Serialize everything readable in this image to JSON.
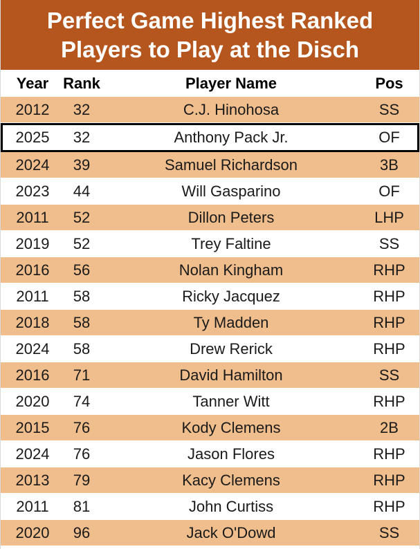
{
  "title": {
    "line1": "Perfect Game Highest Ranked",
    "line2": "Players to Play at the Disch"
  },
  "colors": {
    "banner": "#b5561f",
    "stripe": "#f0be8c",
    "highlight_border": "#000000"
  },
  "headers": {
    "year": "Year",
    "rank": "Rank",
    "name": "Player Name",
    "pos": "Pos"
  },
  "rows": [
    {
      "year": "2012",
      "rank": "32",
      "name": "C.J. Hinohosa",
      "pos": "SS"
    },
    {
      "year": "2025",
      "rank": "32",
      "name": "Anthony Pack Jr.",
      "pos": "OF"
    },
    {
      "year": "2024",
      "rank": "39",
      "name": "Samuel Richardson",
      "pos": "3B"
    },
    {
      "year": "2023",
      "rank": "44",
      "name": "Will Gasparino",
      "pos": "OF"
    },
    {
      "year": "2011",
      "rank": "52",
      "name": "Dillon Peters",
      "pos": "LHP"
    },
    {
      "year": "2019",
      "rank": "52",
      "name": "Trey Faltine",
      "pos": "SS"
    },
    {
      "year": "2016",
      "rank": "56",
      "name": "Nolan Kingham",
      "pos": "RHP"
    },
    {
      "year": "2011",
      "rank": "58",
      "name": "Ricky Jacquez",
      "pos": "RHP"
    },
    {
      "year": "2018",
      "rank": "58",
      "name": "Ty Madden",
      "pos": "RHP"
    },
    {
      "year": "2024",
      "rank": "58",
      "name": "Drew Rerick",
      "pos": "RHP"
    },
    {
      "year": "2016",
      "rank": "71",
      "name": "David Hamilton",
      "pos": "SS"
    },
    {
      "year": "2020",
      "rank": "74",
      "name": "Tanner Witt",
      "pos": "RHP"
    },
    {
      "year": "2015",
      "rank": "76",
      "name": "Kody Clemens",
      "pos": "2B"
    },
    {
      "year": "2024",
      "rank": "76",
      "name": "Jason Flores",
      "pos": "RHP"
    },
    {
      "year": "2013",
      "rank": "79",
      "name": "Kacy Clemens",
      "pos": "RHP"
    },
    {
      "year": "2011",
      "rank": "81",
      "name": "John Curtiss",
      "pos": "RHP"
    },
    {
      "year": "2020",
      "rank": "96",
      "name": "Jack O'Dowd",
      "pos": "SS"
    }
  ]
}
